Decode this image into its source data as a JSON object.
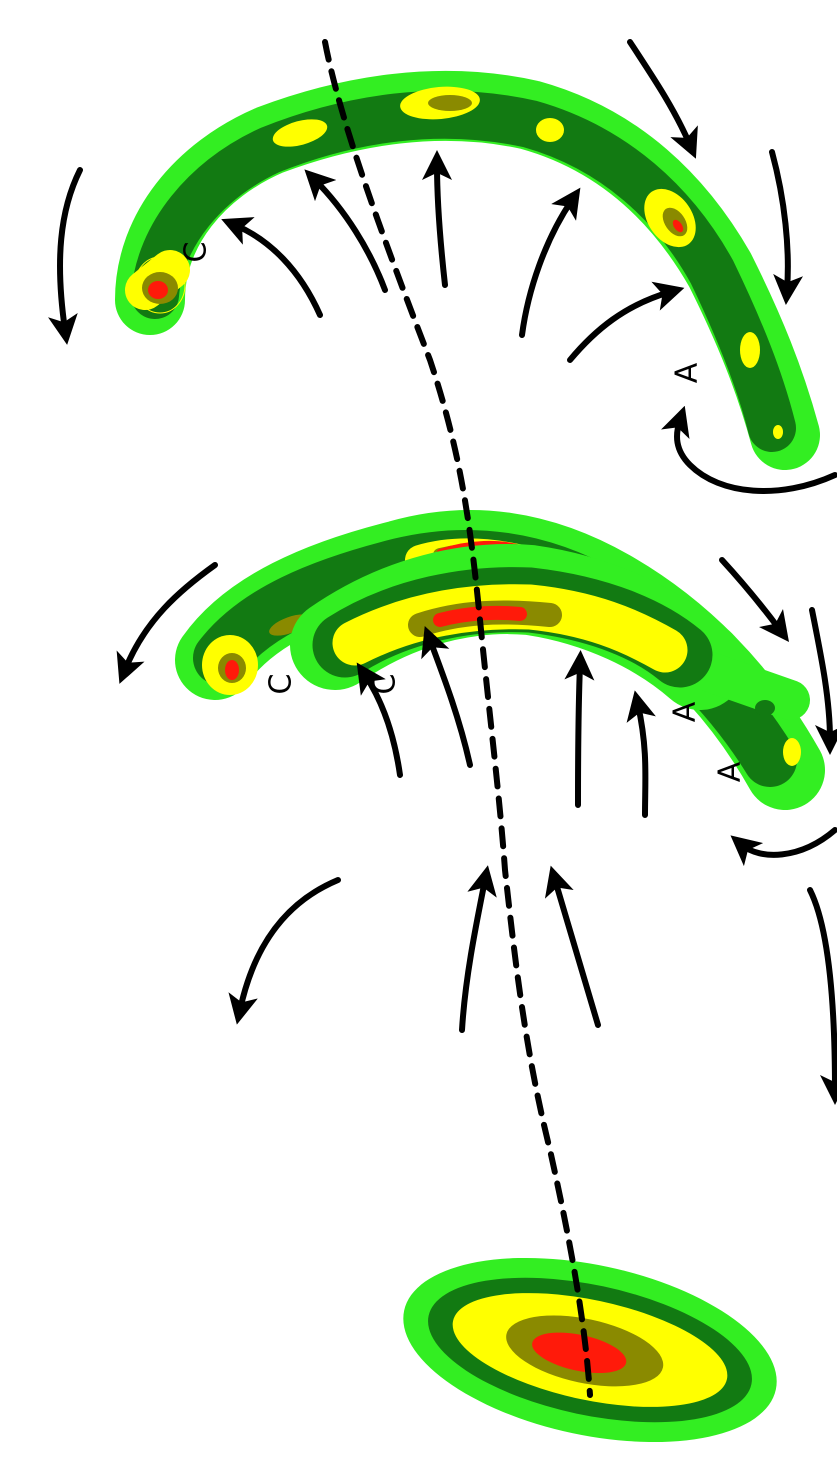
{
  "stages": [
    {
      "c_label": "C",
      "a_label": "A"
    },
    {
      "c_label": "C",
      "a_label": "A"
    },
    {
      "c_label": "C",
      "a_label": "A"
    }
  ]
}
